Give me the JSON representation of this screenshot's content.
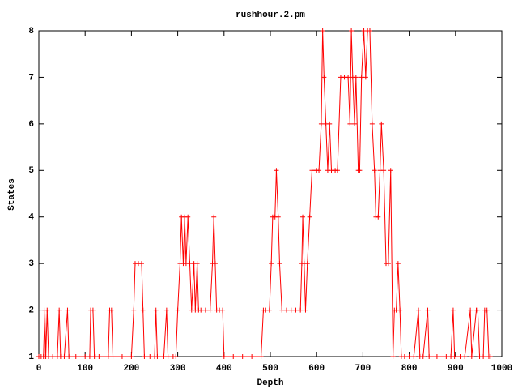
{
  "chart_data": {
    "type": "line",
    "title": "rushhour.2.pm",
    "xlabel": "Depth",
    "ylabel": "States",
    "x": [
      0,
      5,
      10,
      13,
      15,
      18,
      21,
      30,
      40,
      44,
      47,
      55,
      62,
      65,
      80,
      100,
      110,
      112,
      117,
      120,
      130,
      150,
      153,
      157,
      160,
      180,
      200,
      205,
      208,
      215,
      222,
      225,
      228,
      240,
      250,
      253,
      256,
      270,
      276,
      279,
      290,
      296,
      300,
      305,
      308,
      312,
      315,
      318,
      322,
      326,
      330,
      335,
      338,
      342,
      345,
      350,
      360,
      370,
      375,
      378,
      381,
      384,
      390,
      397,
      400,
      420,
      440,
      460,
      480,
      485,
      490,
      498,
      502,
      505,
      510,
      513,
      517,
      520,
      525,
      535,
      545,
      555,
      565,
      568,
      570,
      573,
      576,
      580,
      585,
      590,
      600,
      605,
      610,
      613,
      616,
      620,
      624,
      628,
      632,
      640,
      645,
      652,
      660,
      668,
      672,
      675,
      678,
      682,
      685,
      690,
      693,
      697,
      702,
      706,
      710,
      715,
      720,
      725,
      728,
      733,
      737,
      740,
      745,
      750,
      755,
      760,
      765,
      768,
      772,
      776,
      780,
      783,
      790,
      800,
      810,
      820,
      823,
      830,
      840,
      843,
      860,
      880,
      890,
      895,
      898,
      910,
      920,
      932,
      935,
      945,
      948,
      952,
      960,
      963,
      968,
      972,
      975
    ],
    "values": [
      1,
      1,
      1,
      2,
      1,
      2,
      1,
      1,
      1,
      2,
      1,
      1,
      2,
      1,
      1,
      1,
      1,
      2,
      2,
      1,
      1,
      1,
      2,
      2,
      1,
      1,
      1,
      2,
      3,
      3,
      3,
      2,
      1,
      1,
      1,
      2,
      1,
      1,
      2,
      1,
      1,
      1,
      2,
      3,
      4,
      3,
      4,
      3,
      4,
      3,
      2,
      3,
      2,
      3,
      2,
      2,
      2,
      2,
      3,
      4,
      3,
      2,
      2,
      2,
      1,
      1,
      1,
      1,
      1,
      2,
      2,
      2,
      3,
      4,
      4,
      5,
      4,
      3,
      2,
      2,
      2,
      2,
      2,
      3,
      4,
      3,
      2,
      3,
      4,
      5,
      5,
      5,
      6,
      8,
      7,
      6,
      5,
      6,
      5,
      5,
      5,
      7,
      7,
      7,
      6,
      8,
      7,
      6,
      7,
      5,
      5,
      7,
      8,
      7,
      8,
      8,
      6,
      5,
      4,
      4,
      5,
      6,
      5,
      3,
      3,
      5,
      1,
      2,
      2,
      3,
      2,
      1,
      1,
      1,
      1,
      2,
      1,
      1,
      2,
      1,
      1,
      1,
      1,
      2,
      1,
      1,
      1,
      2,
      1,
      2,
      2,
      1,
      1,
      2,
      2,
      1,
      1
    ],
    "color": "#ff0000",
    "xlim": [
      0,
      1000
    ],
    "xticks": [
      0,
      100,
      200,
      300,
      400,
      500,
      600,
      700,
      800,
      900,
      1000
    ],
    "ylim": [
      1,
      8
    ],
    "yticks": [
      1,
      2,
      3,
      4,
      5,
      6,
      7,
      8
    ]
  }
}
